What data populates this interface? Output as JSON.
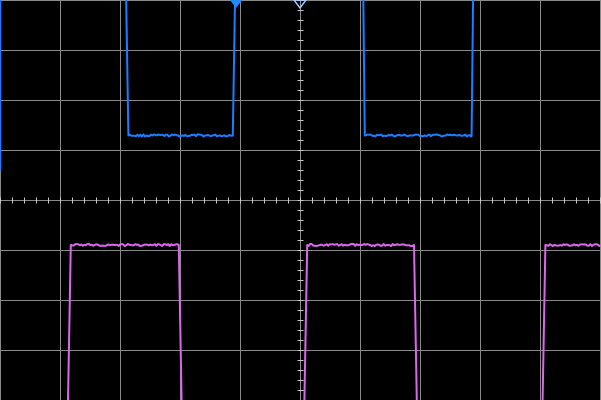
{
  "screen": {
    "divisions_x": 10,
    "divisions_y": 8,
    "subdivisions": 5,
    "grid_color": "#8a8a8a",
    "background": "#000000",
    "center_axis_color": "#c8c8c8"
  },
  "markers": {
    "trigger_position_icon": "triangle-down-icon",
    "trigger_position_color": "#1e8cff",
    "horizontal_position_icon": "hollow-triangle-down-icon",
    "horizontal_position_color": "#9ec9ff"
  },
  "chart_data": {
    "type": "line",
    "series": [
      {
        "id": "channel-1",
        "color": "#1e7dff",
        "points": [
          [
            0.0,
            0.6
          ],
          [
            0.0,
            5.69
          ],
          [
            2.08,
            5.69
          ],
          [
            2.14,
            1.3
          ],
          [
            3.88,
            1.3
          ],
          [
            3.94,
            5.69
          ],
          [
            6.04,
            5.69
          ],
          [
            6.08,
            1.3
          ],
          [
            7.86,
            1.3
          ],
          [
            7.9,
            5.69
          ],
          [
            10.0,
            5.69
          ]
        ]
      },
      {
        "id": "channel-2",
        "color": "#dd66ee",
        "points": [
          [
            0.0,
            -4.22
          ],
          [
            1.13,
            -4.22
          ],
          [
            1.18,
            -0.89
          ],
          [
            2.98,
            -0.89
          ],
          [
            3.03,
            -4.22
          ],
          [
            5.07,
            -4.22
          ],
          [
            5.12,
            -0.89
          ],
          [
            6.9,
            -0.89
          ],
          [
            6.95,
            -4.22
          ],
          [
            9.04,
            -4.22
          ],
          [
            9.09,
            -0.89
          ],
          [
            10.0,
            -0.89
          ]
        ]
      }
    ]
  }
}
